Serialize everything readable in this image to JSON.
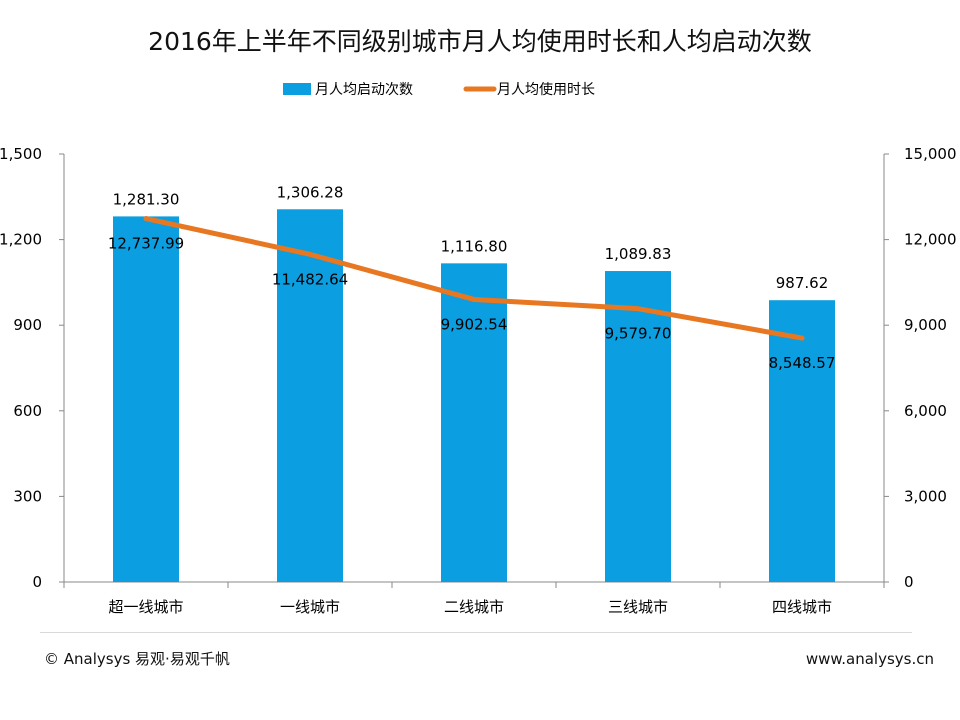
{
  "title": "2016年上半年不同级别城市月人均使用时长和人均启动次数",
  "footer": {
    "copyright": "© Analysys 易观·易观千帆",
    "website": "www.analysys.cn"
  },
  "colors": {
    "bar": "#0b9ee0",
    "line": "#e87722",
    "axis": "#888888",
    "text": "#000000"
  },
  "chart_data": {
    "type": "bar+line",
    "categories": [
      "超一线城市",
      "一线城市",
      "二线城市",
      "三线城市",
      "四线城市"
    ],
    "series": [
      {
        "name": "月人均启动次数",
        "type": "bar",
        "axis": "left",
        "values": [
          1281.3,
          1306.28,
          1116.8,
          1089.83,
          987.62
        ],
        "labels": [
          "1,281.30",
          "1,306.28",
          "1,116.80",
          "1,089.83",
          "987.62"
        ]
      },
      {
        "name": "月人均使用时长",
        "type": "line",
        "axis": "right",
        "values": [
          12737.99,
          11482.64,
          9902.54,
          9579.7,
          8548.57
        ],
        "labels": [
          "12,737.99",
          "11,482.64",
          "9,902.54",
          "9,579.70",
          "8,548.57"
        ]
      }
    ],
    "left_axis": {
      "min": 0,
      "max": 1500,
      "ticks": [
        "0",
        "300",
        "600",
        "900",
        "1,200",
        "1,500"
      ]
    },
    "right_axis": {
      "min": 0,
      "max": 15000,
      "ticks": [
        "0",
        "3,000",
        "6,000",
        "9,000",
        "12,000",
        "15,000"
      ]
    },
    "legend_position": "top-center"
  }
}
